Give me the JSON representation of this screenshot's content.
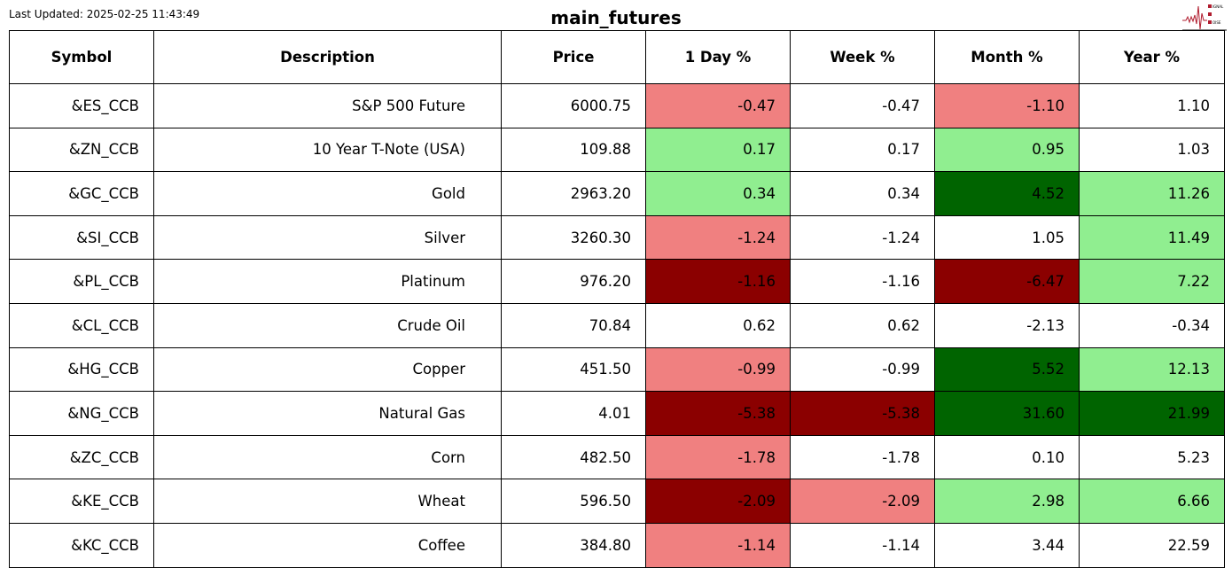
{
  "last_updated": "Last Updated: 2025-02-25 11:43:49",
  "title": "main_futures",
  "logo": {
    "text": "SIGNAL 2 NOISE",
    "color": "#b01c2e"
  },
  "colors": {
    "lc": "#f08080",
    "lg": "#90ee90",
    "dg": "#006400",
    "dr": "#8b0000",
    "none": "#ffffff"
  },
  "chart_data": {
    "type": "table",
    "columns": [
      "Symbol",
      "Description",
      "Price",
      "1 Day %",
      "Week %",
      "Month %",
      "Year %"
    ],
    "rows": [
      {
        "symbol": "&ES_CCB",
        "description": "S&P 500 Future",
        "price": "6000.75",
        "day": "-0.47",
        "week": "-0.47",
        "month": "-1.10",
        "year": "1.10",
        "colors": [
          "lc",
          "none",
          "lc",
          "none"
        ]
      },
      {
        "symbol": "&ZN_CCB",
        "description": "10 Year T-Note (USA)",
        "price": "109.88",
        "day": "0.17",
        "week": "0.17",
        "month": "0.95",
        "year": "1.03",
        "colors": [
          "lg",
          "none",
          "lg",
          "none"
        ]
      },
      {
        "symbol": "&GC_CCB",
        "description": "Gold",
        "price": "2963.20",
        "day": "0.34",
        "week": "0.34",
        "month": "4.52",
        "year": "11.26",
        "colors": [
          "lg",
          "none",
          "dg",
          "lg"
        ]
      },
      {
        "symbol": "&SI_CCB",
        "description": "Silver",
        "price": "3260.30",
        "day": "-1.24",
        "week": "-1.24",
        "month": "1.05",
        "year": "11.49",
        "colors": [
          "lc",
          "none",
          "none",
          "lg"
        ]
      },
      {
        "symbol": "&PL_CCB",
        "description": "Platinum",
        "price": "976.20",
        "day": "-1.16",
        "week": "-1.16",
        "month": "-6.47",
        "year": "7.22",
        "colors": [
          "dr",
          "none",
          "dr",
          "lg"
        ]
      },
      {
        "symbol": "&CL_CCB",
        "description": "Crude Oil",
        "price": "70.84",
        "day": "0.62",
        "week": "0.62",
        "month": "-2.13",
        "year": "-0.34",
        "colors": [
          "none",
          "none",
          "none",
          "none"
        ]
      },
      {
        "symbol": "&HG_CCB",
        "description": "Copper",
        "price": "451.50",
        "day": "-0.99",
        "week": "-0.99",
        "month": "5.52",
        "year": "12.13",
        "colors": [
          "lc",
          "none",
          "dg",
          "lg"
        ]
      },
      {
        "symbol": "&NG_CCB",
        "description": "Natural Gas",
        "price": "4.01",
        "day": "-5.38",
        "week": "-5.38",
        "month": "31.60",
        "year": "21.99",
        "colors": [
          "dr",
          "dr",
          "dg",
          "dg"
        ]
      },
      {
        "symbol": "&ZC_CCB",
        "description": "Corn",
        "price": "482.50",
        "day": "-1.78",
        "week": "-1.78",
        "month": "0.10",
        "year": "5.23",
        "colors": [
          "lc",
          "none",
          "none",
          "none"
        ]
      },
      {
        "symbol": "&KE_CCB",
        "description": "Wheat",
        "price": "596.50",
        "day": "-2.09",
        "week": "-2.09",
        "month": "2.98",
        "year": "6.66",
        "colors": [
          "dr",
          "lc",
          "lg",
          "lg"
        ]
      },
      {
        "symbol": "&KC_CCB",
        "description": "Coffee",
        "price": "384.80",
        "day": "-1.14",
        "week": "-1.14",
        "month": "3.44",
        "year": "22.59",
        "colors": [
          "lc",
          "none",
          "none",
          "none"
        ]
      }
    ]
  }
}
